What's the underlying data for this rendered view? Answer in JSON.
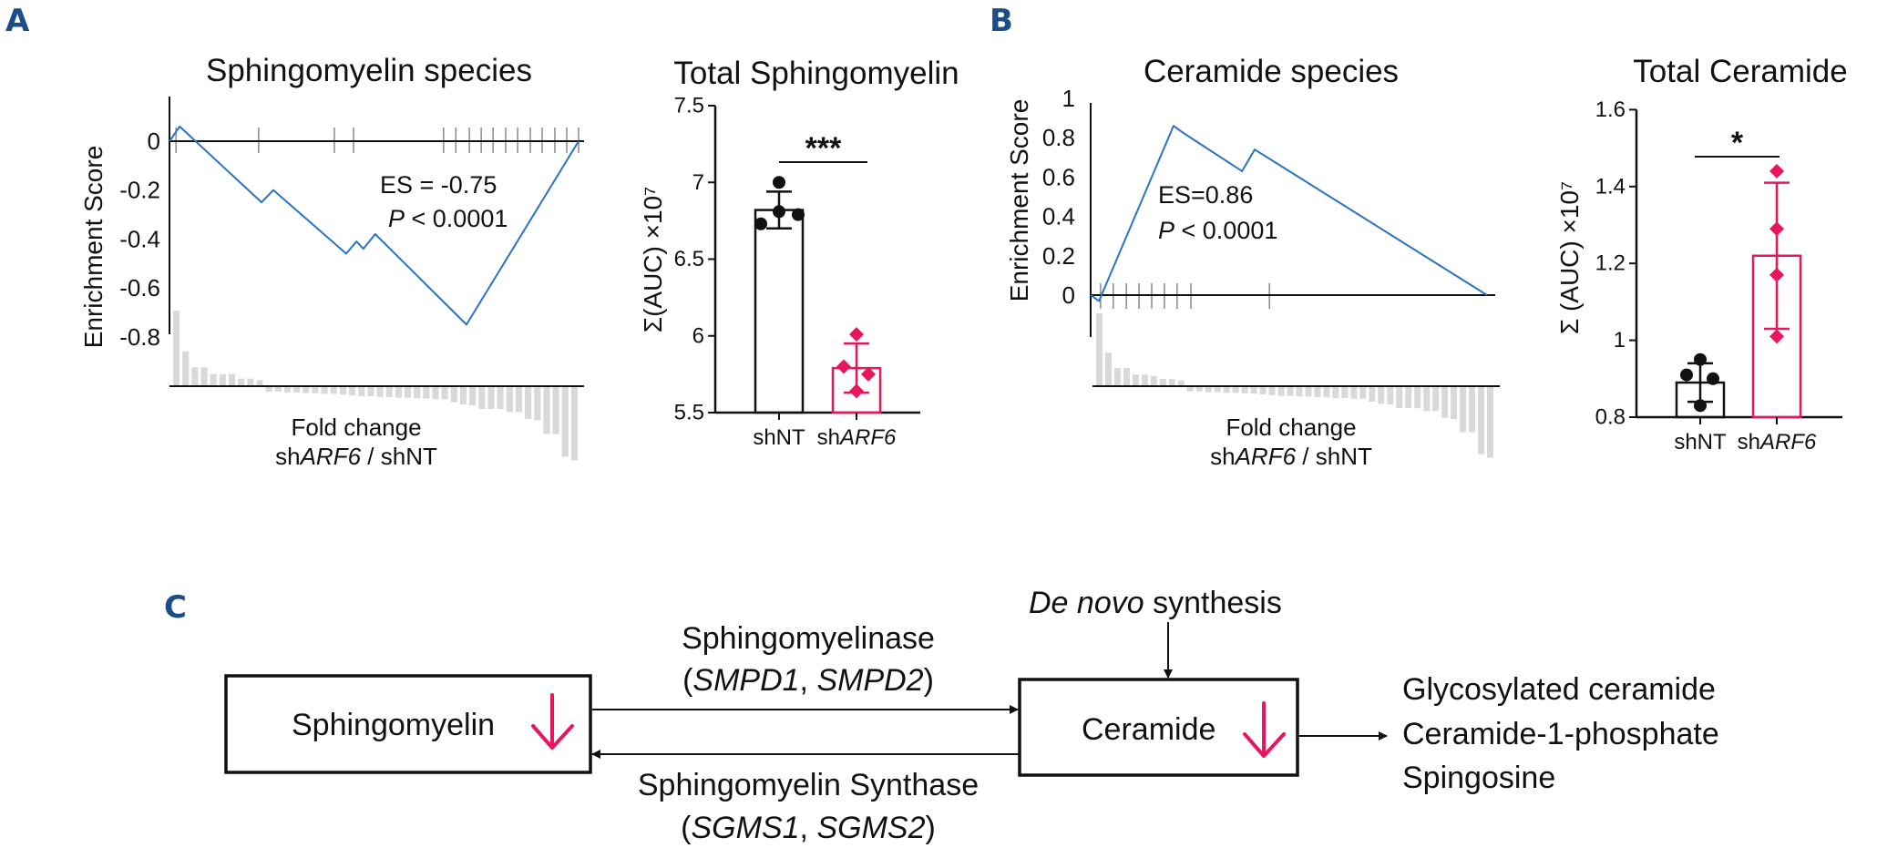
{
  "colors": {
    "curve": "#2a73c2",
    "accent": "#e8175d",
    "panel_letter": "#1b4d89",
    "fold_bars": "#d9d9d9",
    "hits": "#8a8a8a",
    "black": "#111111"
  },
  "chart_data": [
    {
      "panel": "A",
      "type": "line",
      "title": "Sphingomyelin species",
      "ylabel": "Enrichment Score",
      "xlabel_line1": "Fold change",
      "xlabel_line2": {
        "prefix": "sh",
        "gene": "ARF6",
        "suffix": " / shNT"
      },
      "ylim": [
        -0.8,
        0.15
      ],
      "yticks": [
        "0",
        "-0.2",
        "-0.4",
        "-0.6",
        "-0.8"
      ],
      "ytick_values": [
        0,
        -0.2,
        -0.4,
        -0.6,
        -0.8
      ],
      "rank_range": [
        0,
        100
      ],
      "curve": [
        [
          0,
          0
        ],
        [
          2.5,
          0.06
        ],
        [
          22.5,
          -0.25
        ],
        [
          25.4,
          -0.2
        ],
        [
          43.2,
          -0.46
        ],
        [
          45.7,
          -0.41
        ],
        [
          47.4,
          -0.44
        ],
        [
          50.3,
          -0.38
        ],
        [
          72.6,
          -0.75
        ],
        [
          100,
          0
        ]
      ],
      "hits": [
        1.6,
        21.8,
        40.3,
        45,
        67,
        70,
        73.3,
        76.2,
        79.1,
        82.2,
        85.1,
        88.2,
        91.1,
        94.2,
        97.1,
        100
      ],
      "fold_change": [
        1.0,
        0.46,
        0.25,
        0.25,
        0.16,
        0.16,
        0.16,
        0.1,
        0.1,
        0.08,
        -0.06,
        -0.06,
        -0.07,
        -0.07,
        -0.08,
        -0.08,
        -0.09,
        -0.09,
        -0.1,
        -0.11,
        -0.12,
        -0.12,
        -0.13,
        -0.13,
        -0.14,
        -0.14,
        -0.15,
        -0.15,
        -0.16,
        -0.16,
        -0.2,
        -0.23,
        -0.24,
        -0.29,
        -0.29,
        -0.29,
        -0.33,
        -0.33,
        -0.42,
        -0.44,
        -0.62,
        -0.62,
        -0.92,
        -0.97
      ],
      "annotation": {
        "es": "ES = -0.75",
        "p_label": "P",
        "p_rest": " < 0.0001"
      }
    },
    {
      "panel": "A",
      "type": "bar",
      "title": "Total Sphingomyelin",
      "ylabel": "Σ(AUC) ×10⁷",
      "ylim": [
        5.5,
        7.5
      ],
      "yticks": [
        "7.5",
        "7",
        "6.5",
        "6",
        "5.5"
      ],
      "ytick_values": [
        7.5,
        7,
        6.5,
        6,
        5.5
      ],
      "categories": [
        {
          "prefix": "shNT",
          "gene": ""
        },
        {
          "prefix": "sh",
          "gene": "ARF6"
        }
      ],
      "series": [
        {
          "name": "shNT",
          "mean": 6.82,
          "sd": 0.12,
          "points": [
            7.0,
            6.81,
            6.79,
            6.73
          ],
          "marker": "circle"
        },
        {
          "name": "shARF6",
          "mean": 5.79,
          "sd": 0.16,
          "points": [
            6.01,
            5.8,
            5.75,
            5.64
          ],
          "marker": "diamond"
        }
      ],
      "significance": "***"
    },
    {
      "panel": "B",
      "type": "line",
      "title": "Ceramide species",
      "ylabel": "Enrichment Score",
      "xlabel_line1": "Fold change",
      "xlabel_line2": {
        "prefix": "sh",
        "gene": "ARF6",
        "suffix": " / shNT"
      },
      "ylim": [
        -0.2,
        1
      ],
      "yticks": [
        "1",
        "0.8",
        "0.6",
        "0.4",
        "0.2",
        "0"
      ],
      "ytick_values": [
        1,
        0.8,
        0.6,
        0.4,
        0.2,
        0
      ],
      "rank_range": [
        0,
        100
      ],
      "curve": [
        [
          0,
          0
        ],
        [
          2.1,
          -0.03
        ],
        [
          20.9,
          0.86
        ],
        [
          23.7,
          0.82
        ],
        [
          38.2,
          0.63
        ],
        [
          41.4,
          0.74
        ],
        [
          100,
          0
        ]
      ],
      "hits": [
        2.5,
        5.7,
        9,
        12.2,
        15.4,
        18.6,
        21.8,
        25.3,
        45.1
      ],
      "fold_change": [
        1.0,
        0.46,
        0.25,
        0.25,
        0.16,
        0.16,
        0.14,
        0.1,
        0.1,
        0.08,
        -0.06,
        -0.06,
        -0.07,
        -0.07,
        -0.08,
        -0.08,
        -0.09,
        -0.09,
        -0.1,
        -0.11,
        -0.12,
        -0.12,
        -0.13,
        -0.13,
        -0.14,
        -0.14,
        -0.15,
        -0.15,
        -0.16,
        -0.16,
        -0.2,
        -0.23,
        -0.24,
        -0.29,
        -0.29,
        -0.29,
        -0.33,
        -0.33,
        -0.42,
        -0.44,
        -0.62,
        -0.62,
        -0.92,
        -0.97
      ],
      "annotation": {
        "es": "ES=0.86",
        "p_label": "P",
        "p_rest": " < 0.0001"
      }
    },
    {
      "panel": "B",
      "type": "bar",
      "title": "Total Ceramide",
      "ylabel": "Σ (AUC) ×10⁷",
      "ylim": [
        0.8,
        1.6
      ],
      "yticks": [
        "1.6",
        "1.4",
        "1.2",
        "1",
        "0.8"
      ],
      "ytick_values": [
        1.6,
        1.4,
        1.2,
        1,
        0.8
      ],
      "categories": [
        {
          "prefix": "shNT",
          "gene": ""
        },
        {
          "prefix": "sh",
          "gene": "ARF6"
        }
      ],
      "series": [
        {
          "name": "shNT",
          "mean": 0.89,
          "sd": 0.05,
          "points": [
            0.95,
            0.91,
            0.9,
            0.83
          ],
          "marker": "circle"
        },
        {
          "name": "shARF6",
          "mean": 1.22,
          "sd": 0.19,
          "points": [
            1.44,
            1.29,
            1.17,
            1.01
          ],
          "marker": "diamond"
        }
      ],
      "significance": "*"
    }
  ],
  "panels": {
    "a": "A",
    "b": "B",
    "c": "C"
  },
  "diagram": {
    "sphingomyelin": "Sphingomyelin",
    "ceramide": "Ceramide",
    "de_novo_italic": "De novo",
    "de_novo_rest": " synthesis",
    "forward_enzyme": "Sphingomyelinase",
    "forward_genes": {
      "open": "(",
      "g1": "SMPD1",
      "sep": ", ",
      "g2": "SMPD2",
      "close": ")"
    },
    "reverse_enzyme": "Sphingomyelin Synthase",
    "reverse_genes": {
      "open": "(",
      "g1": "SGMS1",
      "sep": ", ",
      "g2": "SGMS2",
      "close": ")"
    },
    "products": [
      "Glycosylated ceramide",
      "Ceramide-1-phosphate",
      "Spingosine"
    ],
    "decrease_icon": "arrow-down-icon"
  }
}
